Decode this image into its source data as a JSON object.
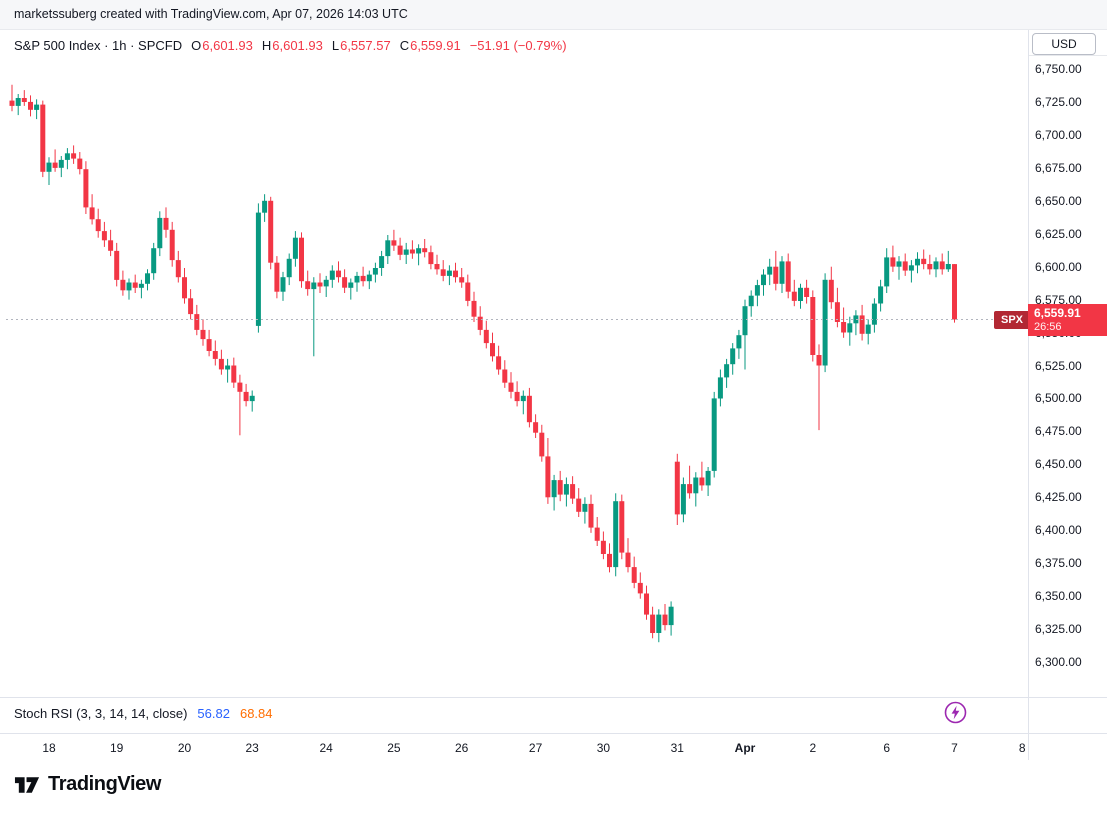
{
  "attribution": "marketssuberg created with TradingView.com, Apr 07, 2026 14:03 UTC",
  "header": {
    "symbol_line": "S&P 500 Index · 1h · SPCFD",
    "o_label": "O",
    "o_value": "6,601.93",
    "h_label": "H",
    "h_value": "6,601.93",
    "l_label": "L",
    "l_value": "6,557.57",
    "c_label": "C",
    "c_value": "6,559.91",
    "change": "−51.91 (−0.79%)"
  },
  "axis": {
    "currency": "USD"
  },
  "price_label": {
    "symbol": "SPX",
    "price": "6,559.91",
    "countdown": "26:56"
  },
  "indicator": {
    "name": "Stoch RSI (3, 3, 14, 14, close)",
    "k_value": "56.82",
    "d_value": "68.84"
  },
  "footer": {
    "brand": "TradingView"
  },
  "colors": {
    "up": "#089981",
    "down": "#F23645",
    "text": "#131722",
    "k_blue": "#2962FF",
    "d_orange": "#FF6D00",
    "tag_red": "#B22833",
    "label_red": "#F23645",
    "line_gray": "#B2B5BE",
    "purple": "#9C27B0"
  },
  "chart_data": {
    "type": "candlestick",
    "title": "S&P 500 Index",
    "interval": "1h",
    "exchange": "SPCFD",
    "currency": "USD",
    "current_price": 6559.91,
    "open": 6601.93,
    "high": 6601.93,
    "low": 6557.57,
    "close": 6559.91,
    "change": -51.91,
    "change_pct": -0.79,
    "ylim": [
      6300,
      6750
    ],
    "grid": false,
    "y_ticks": [
      {
        "label": "6,750.00",
        "value": 6750
      },
      {
        "label": "6,725.00",
        "value": 6725
      },
      {
        "label": "6,700.00",
        "value": 6700
      },
      {
        "label": "6,675.00",
        "value": 6675
      },
      {
        "label": "6,650.00",
        "value": 6650
      },
      {
        "label": "6,625.00",
        "value": 6625
      },
      {
        "label": "6,600.00",
        "value": 6600
      },
      {
        "label": "6,575.00",
        "value": 6575
      },
      {
        "label": "6,550.00",
        "value": 6550
      },
      {
        "label": "6,525.00",
        "value": 6525
      },
      {
        "label": "6,500.00",
        "value": 6500
      },
      {
        "label": "6,475.00",
        "value": 6475
      },
      {
        "label": "6,450.00",
        "value": 6450
      },
      {
        "label": "6,425.00",
        "value": 6425
      },
      {
        "label": "6,400.00",
        "value": 6400
      },
      {
        "label": "6,375.00",
        "value": 6375
      },
      {
        "label": "6,350.00",
        "value": 6350
      },
      {
        "label": "6,325.00",
        "value": 6325
      },
      {
        "label": "6,300.00",
        "value": 6300
      }
    ],
    "x_labels": [
      {
        "text": "18",
        "index": 6
      },
      {
        "text": "19",
        "index": 17
      },
      {
        "text": "20",
        "index": 28
      },
      {
        "text": "23",
        "index": 39
      },
      {
        "text": "24",
        "index": 51
      },
      {
        "text": "25",
        "index": 62
      },
      {
        "text": "26",
        "index": 73
      },
      {
        "text": "27",
        "index": 85
      },
      {
        "text": "30",
        "index": 96
      },
      {
        "text": "31",
        "index": 108
      },
      {
        "text": "Apr",
        "index": 119,
        "bold": true
      },
      {
        "text": "2",
        "index": 130
      },
      {
        "text": "6",
        "index": 142
      },
      {
        "text": "7",
        "index": 153
      },
      {
        "text": "8",
        "index": 164
      }
    ],
    "candles_ohlc": [
      [
        6726,
        6738,
        6718,
        6722
      ],
      [
        6722,
        6731,
        6715,
        6728
      ],
      [
        6728,
        6734,
        6722,
        6725
      ],
      [
        6725,
        6730,
        6714,
        6719
      ],
      [
        6719,
        6727,
        6712,
        6723
      ],
      [
        6723,
        6726,
        6668,
        6672
      ],
      [
        6672,
        6683,
        6662,
        6679
      ],
      [
        6679,
        6689,
        6672,
        6675
      ],
      [
        6675,
        6684,
        6668,
        6681
      ],
      [
        6681,
        6690,
        6674,
        6686
      ],
      [
        6686,
        6692,
        6678,
        6682
      ],
      [
        6682,
        6687,
        6670,
        6674
      ],
      [
        6674,
        6680,
        6640,
        6645
      ],
      [
        6645,
        6655,
        6632,
        6636
      ],
      [
        6636,
        6644,
        6622,
        6627
      ],
      [
        6627,
        6634,
        6615,
        6620
      ],
      [
        6620,
        6628,
        6608,
        6612
      ],
      [
        6612,
        6618,
        6585,
        6590
      ],
      [
        6590,
        6597,
        6578,
        6582
      ],
      [
        6582,
        6591,
        6575,
        6588
      ],
      [
        6588,
        6594,
        6580,
        6584
      ],
      [
        6584,
        6590,
        6576,
        6587
      ],
      [
        6587,
        6598,
        6582,
        6595
      ],
      [
        6595,
        6618,
        6590,
        6614
      ],
      [
        6614,
        6642,
        6608,
        6637
      ],
      [
        6637,
        6645,
        6622,
        6628
      ],
      [
        6628,
        6634,
        6600,
        6605
      ],
      [
        6605,
        6612,
        6588,
        6592
      ],
      [
        6592,
        6599,
        6572,
        6576
      ],
      [
        6576,
        6583,
        6560,
        6564
      ],
      [
        6564,
        6571,
        6548,
        6552
      ],
      [
        6552,
        6560,
        6540,
        6545
      ],
      [
        6545,
        6552,
        6532,
        6536
      ],
      [
        6536,
        6544,
        6525,
        6530
      ],
      [
        6530,
        6537,
        6518,
        6522
      ],
      [
        6522,
        6530,
        6512,
        6525
      ],
      [
        6525,
        6531,
        6508,
        6512
      ],
      [
        6512,
        6518,
        6472,
        6505
      ],
      [
        6505,
        6511,
        6494,
        6498
      ],
      [
        6498,
        6506,
        6490,
        6502
      ],
      [
        6555,
        6648,
        6550,
        6641
      ],
      [
        6641,
        6655,
        6634,
        6650
      ],
      [
        6650,
        6653,
        6598,
        6603
      ],
      [
        6603,
        6608,
        6576,
        6581
      ],
      [
        6581,
        6596,
        6574,
        6592
      ],
      [
        6592,
        6610,
        6586,
        6606
      ],
      [
        6606,
        6627,
        6600,
        6622
      ],
      [
        6622,
        6626,
        6584,
        6589
      ],
      [
        6589,
        6597,
        6578,
        6583
      ],
      [
        6583,
        6592,
        6532,
        6588
      ],
      [
        6588,
        6595,
        6580,
        6585
      ],
      [
        6585,
        6593,
        6577,
        6590
      ],
      [
        6590,
        6601,
        6584,
        6597
      ],
      [
        6597,
        6604,
        6588,
        6592
      ],
      [
        6592,
        6598,
        6580,
        6584
      ],
      [
        6584,
        6591,
        6575,
        6588
      ],
      [
        6588,
        6596,
        6581,
        6593
      ],
      [
        6593,
        6600,
        6585,
        6589
      ],
      [
        6589,
        6597,
        6583,
        6594
      ],
      [
        6594,
        6603,
        6588,
        6599
      ],
      [
        6599,
        6612,
        6593,
        6608
      ],
      [
        6608,
        6624,
        6602,
        6620
      ],
      [
        6620,
        6628,
        6612,
        6616
      ],
      [
        6616,
        6622,
        6605,
        6609
      ],
      [
        6609,
        6618,
        6602,
        6613
      ],
      [
        6613,
        6620,
        6606,
        6610
      ],
      [
        6610,
        6617,
        6601,
        6614
      ],
      [
        6614,
        6621,
        6607,
        6611
      ],
      [
        6611,
        6616,
        6598,
        6602
      ],
      [
        6602,
        6609,
        6594,
        6598
      ],
      [
        6598,
        6605,
        6589,
        6593
      ],
      [
        6593,
        6601,
        6586,
        6597
      ],
      [
        6597,
        6603,
        6588,
        6592
      ],
      [
        6592,
        6599,
        6584,
        6588
      ],
      [
        6588,
        6594,
        6570,
        6574
      ],
      [
        6574,
        6581,
        6558,
        6562
      ],
      [
        6562,
        6570,
        6548,
        6552
      ],
      [
        6552,
        6559,
        6538,
        6542
      ],
      [
        6542,
        6550,
        6528,
        6532
      ],
      [
        6532,
        6540,
        6518,
        6522
      ],
      [
        6522,
        6529,
        6508,
        6512
      ],
      [
        6512,
        6520,
        6500,
        6505
      ],
      [
        6505,
        6513,
        6494,
        6498
      ],
      [
        6498,
        6506,
        6488,
        6502
      ],
      [
        6502,
        6508,
        6478,
        6482
      ],
      [
        6482,
        6488,
        6470,
        6474
      ],
      [
        6474,
        6480,
        6452,
        6456
      ],
      [
        6456,
        6470,
        6420,
        6425
      ],
      [
        6425,
        6442,
        6415,
        6438
      ],
      [
        6438,
        6445,
        6422,
        6427
      ],
      [
        6427,
        6440,
        6418,
        6435
      ],
      [
        6435,
        6441,
        6420,
        6424
      ],
      [
        6424,
        6432,
        6410,
        6414
      ],
      [
        6414,
        6425,
        6405,
        6420
      ],
      [
        6420,
        6427,
        6398,
        6402
      ],
      [
        6402,
        6410,
        6388,
        6392
      ],
      [
        6392,
        6399,
        6378,
        6382
      ],
      [
        6382,
        6390,
        6368,
        6372
      ],
      [
        6372,
        6428,
        6365,
        6422
      ],
      [
        6422,
        6427,
        6378,
        6383
      ],
      [
        6383,
        6394,
        6368,
        6372
      ],
      [
        6372,
        6380,
        6356,
        6360
      ],
      [
        6360,
        6368,
        6348,
        6352
      ],
      [
        6352,
        6358,
        6332,
        6336
      ],
      [
        6336,
        6342,
        6318,
        6322
      ],
      [
        6322,
        6340,
        6315,
        6336
      ],
      [
        6336,
        6344,
        6324,
        6328
      ],
      [
        6328,
        6346,
        6320,
        6342
      ],
      [
        6452,
        6458,
        6404,
        6412
      ],
      [
        6412,
        6440,
        6406,
        6435
      ],
      [
        6435,
        6449,
        6424,
        6428
      ],
      [
        6428,
        6444,
        6418,
        6440
      ],
      [
        6440,
        6452,
        6430,
        6434
      ],
      [
        6434,
        6448,
        6426,
        6445
      ],
      [
        6445,
        6505,
        6440,
        6500
      ],
      [
        6500,
        6522,
        6494,
        6516
      ],
      [
        6516,
        6530,
        6508,
        6526
      ],
      [
        6526,
        6542,
        6518,
        6538
      ],
      [
        6538,
        6552,
        6530,
        6548
      ],
      [
        6548,
        6575,
        6522,
        6570
      ],
      [
        6570,
        6582,
        6562,
        6578
      ],
      [
        6578,
        6590,
        6570,
        6586
      ],
      [
        6586,
        6598,
        6578,
        6594
      ],
      [
        6594,
        6606,
        6586,
        6600
      ],
      [
        6600,
        6612,
        6582,
        6587
      ],
      [
        6587,
        6608,
        6580,
        6604
      ],
      [
        6604,
        6610,
        6576,
        6581
      ],
      [
        6581,
        6590,
        6570,
        6574
      ],
      [
        6574,
        6587,
        6568,
        6584
      ],
      [
        6584,
        6590,
        6572,
        6577
      ],
      [
        6577,
        6582,
        6528,
        6533
      ],
      [
        6533,
        6541,
        6476,
        6525
      ],
      [
        6525,
        6595,
        6520,
        6590
      ],
      [
        6590,
        6600,
        6568,
        6573
      ],
      [
        6573,
        6584,
        6554,
        6558
      ],
      [
        6558,
        6569,
        6546,
        6550
      ],
      [
        6550,
        6562,
        6540,
        6557
      ],
      [
        6557,
        6567,
        6548,
        6563
      ],
      [
        6563,
        6571,
        6544,
        6549
      ],
      [
        6549,
        6560,
        6541,
        6556
      ],
      [
        6556,
        6576,
        6550,
        6572
      ],
      [
        6572,
        6590,
        6566,
        6585
      ],
      [
        6585,
        6614,
        6580,
        6607
      ],
      [
        6607,
        6616,
        6596,
        6600
      ],
      [
        6600,
        6608,
        6590,
        6604
      ],
      [
        6604,
        6610,
        6593,
        6597
      ],
      [
        6597,
        6605,
        6588,
        6601
      ],
      [
        6601,
        6611,
        6595,
        6606
      ],
      [
        6606,
        6613,
        6598,
        6602
      ],
      [
        6602,
        6609,
        6594,
        6598
      ],
      [
        6598,
        6607,
        6592,
        6604
      ],
      [
        6604,
        6610,
        6594,
        6598
      ],
      [
        6598,
        6612,
        6596,
        6602
      ],
      [
        6601.93,
        6601.93,
        6557.57,
        6559.91
      ]
    ]
  }
}
